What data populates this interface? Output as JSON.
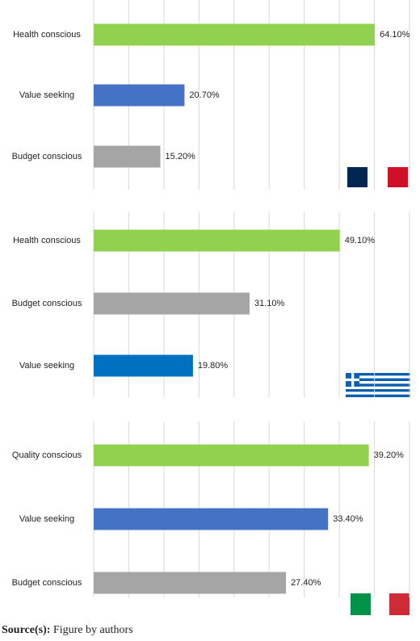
{
  "chart_data": [
    {
      "type": "bar",
      "orientation": "horizontal",
      "categories": [
        "Health conscious",
        "Value seeking",
        "Budget conscious"
      ],
      "values": [
        64.1,
        20.7,
        15.2
      ],
      "value_labels": [
        "64.10%",
        "20.70%",
        "15.20%"
      ],
      "colors": [
        "#92d050",
        "#4472c4",
        "#a5a5a5"
      ],
      "xlim": [
        0,
        72
      ],
      "xticks": [
        0,
        8,
        16,
        24,
        32,
        40,
        48,
        56,
        64,
        72
      ],
      "grid": true
    },
    {
      "type": "bar",
      "orientation": "horizontal",
      "categories": [
        "Health conscious",
        "Budget conscious",
        "Value seeking"
      ],
      "values": [
        49.1,
        31.1,
        19.8
      ],
      "value_labels": [
        "49.10%",
        "31.10%",
        "19.80%"
      ],
      "colors": [
        "#92d050",
        "#a5a5a5",
        "#0070c0"
      ],
      "xlim": [
        0,
        63
      ],
      "xticks": [
        0,
        7,
        14,
        21,
        28,
        35,
        42,
        49,
        56,
        63
      ],
      "grid": true
    },
    {
      "type": "bar",
      "orientation": "horizontal",
      "categories": [
        "Quality conscious",
        "Value seeking",
        "Budget conscious"
      ],
      "values": [
        39.2,
        33.4,
        27.4
      ],
      "value_labels": [
        "39.20%",
        "33.40%",
        "27.40%"
      ],
      "colors": [
        "#92d050",
        "#4472c4",
        "#a5a5a5"
      ],
      "xlim": [
        0,
        45
      ],
      "xticks": [
        0,
        5,
        10,
        15,
        20,
        25,
        30,
        35,
        40,
        45
      ],
      "grid": true
    }
  ],
  "source": {
    "label": "Source(s):",
    "text": "Figure by authors"
  }
}
